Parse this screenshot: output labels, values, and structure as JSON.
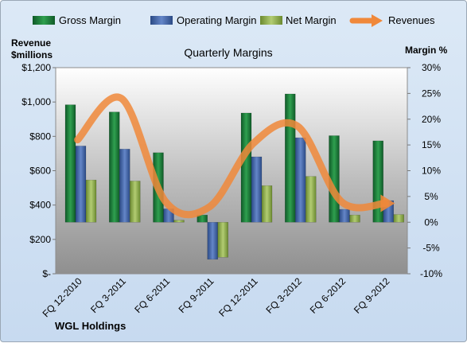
{
  "chart_data": {
    "type": "bar",
    "title": "Quarterly Margins",
    "company": "WGL Holdings",
    "left_axis_label_line1": "Revenue",
    "left_axis_label_line2": "$millions",
    "right_axis_label": "Margin %",
    "left_ylim": [
      0,
      1200
    ],
    "right_ylim": [
      -10,
      30
    ],
    "left_ticks": [
      "$-",
      "$200",
      "$400",
      "$600",
      "$800",
      "$1,000",
      "$1,200"
    ],
    "right_ticks": [
      "-10%",
      "-5%",
      "0%",
      "5%",
      "10%",
      "15%",
      "20%",
      "25%",
      "30%"
    ],
    "categories": [
      "FQ 12-2010",
      "FQ 3-2011",
      "FQ 6-2011",
      "FQ 9-2011",
      "FQ 12-2011",
      "FQ 3-2012",
      "FQ 6-2012",
      "FQ 9-2012"
    ],
    "legend_position": "top",
    "grid": false,
    "series": [
      {
        "name": "Gross Margin",
        "axis": "right",
        "kind": "bar",
        "color": "#1f7a3a",
        "values": [
          22.8,
          21.4,
          13.5,
          1.4,
          21.2,
          24.9,
          16.8,
          15.8
        ]
      },
      {
        "name": "Operating Margin",
        "axis": "right",
        "kind": "bar",
        "color": "#3f5f9f",
        "values": [
          14.8,
          14.2,
          2.6,
          -7.2,
          12.7,
          16.4,
          2.5,
          4.2
        ]
      },
      {
        "name": "Net Margin",
        "axis": "right",
        "kind": "bar",
        "color": "#8aa64a",
        "values": [
          8.2,
          8.0,
          0.4,
          -6.8,
          7.1,
          8.9,
          1.4,
          1.5
        ]
      },
      {
        "name": "Revenues",
        "axis": "left",
        "kind": "line",
        "color": "#f0883a",
        "values": [
          780,
          1020,
          420,
          390,
          760,
          860,
          420,
          410
        ]
      }
    ]
  }
}
